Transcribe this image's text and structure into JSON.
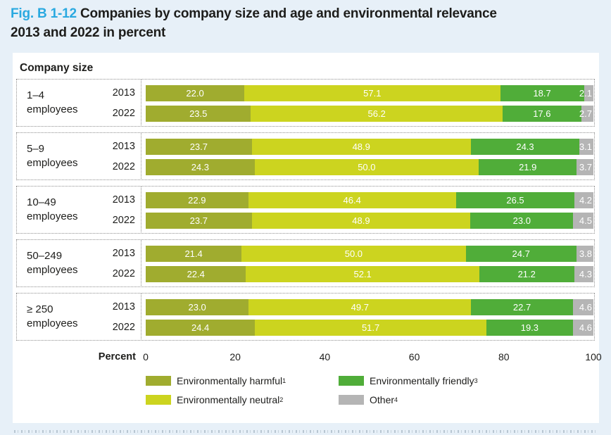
{
  "title": {
    "fig_label": "Fig. B 1-12",
    "line1": "Companies by company size and age and environmental relevance",
    "line2": "2013 and 2022 in percent"
  },
  "chart": {
    "section_label": "Company size",
    "axis_label": "Percent"
  },
  "chart_data": {
    "type": "bar",
    "orientation": "horizontal",
    "stacked": true,
    "title": "Fig. B 1-12 Companies by company size and age and environmental relevance 2013 and 2022 in percent",
    "xlabel": "Percent",
    "xlim": [
      0,
      100
    ],
    "xticks": [
      "0",
      "20",
      "40",
      "60",
      "80",
      "100"
    ],
    "grid": false,
    "legend_position": "bottom",
    "series_names": [
      "Environmentally harmful",
      "Environmentally neutral",
      "Environmentally friendly",
      "Other"
    ],
    "groups": [
      {
        "size": "1–4",
        "size_sub": "employees",
        "rows": [
          {
            "year": "2013",
            "values": [
              22.0,
              57.1,
              18.7,
              2.1
            ]
          },
          {
            "year": "2022",
            "values": [
              23.5,
              56.2,
              17.6,
              2.7
            ]
          }
        ]
      },
      {
        "size": "5–9",
        "size_sub": "employees",
        "rows": [
          {
            "year": "2013",
            "values": [
              23.7,
              48.9,
              24.3,
              3.1
            ]
          },
          {
            "year": "2022",
            "values": [
              24.3,
              50.0,
              21.9,
              3.7
            ]
          }
        ]
      },
      {
        "size": "10–49",
        "size_sub": "employees",
        "rows": [
          {
            "year": "2013",
            "values": [
              22.9,
              46.4,
              26.5,
              4.2
            ]
          },
          {
            "year": "2022",
            "values": [
              23.7,
              48.9,
              23.0,
              4.5
            ]
          }
        ]
      },
      {
        "size": "50–249",
        "size_sub": "employees",
        "rows": [
          {
            "year": "2013",
            "values": [
              21.4,
              50.0,
              24.7,
              3.8
            ]
          },
          {
            "year": "2022",
            "values": [
              22.4,
              52.1,
              21.2,
              4.3
            ]
          }
        ]
      },
      {
        "size": "≥ 250",
        "size_sub": "employees",
        "rows": [
          {
            "year": "2013",
            "values": [
              23.0,
              49.7,
              22.7,
              4.6
            ]
          },
          {
            "year": "2022",
            "values": [
              24.4,
              51.7,
              19.3,
              4.6
            ]
          }
        ]
      }
    ]
  },
  "legend": {
    "items": [
      {
        "label": "Environmentally harmful",
        "sup": "1",
        "color": "#a0ac2f"
      },
      {
        "label": "Environmentally friendly",
        "sup": "3",
        "color": "#50ad39"
      },
      {
        "label": "Environmentally neutral",
        "sup": "2",
        "color": "#ccd41f"
      },
      {
        "label": "Other",
        "sup": "4",
        "color": "#b5b5b5"
      }
    ]
  },
  "colors": {
    "series": [
      "#a0ac2f",
      "#ccd41f",
      "#50ad39",
      "#b5b5b5"
    ],
    "accent": "#2aa9e0",
    "background": "#e7f0f8",
    "panel": "#ffffff",
    "text": "#1d1d1b",
    "bar_value_text": "#ffffff",
    "dotted_border": "#8f8f8f"
  }
}
